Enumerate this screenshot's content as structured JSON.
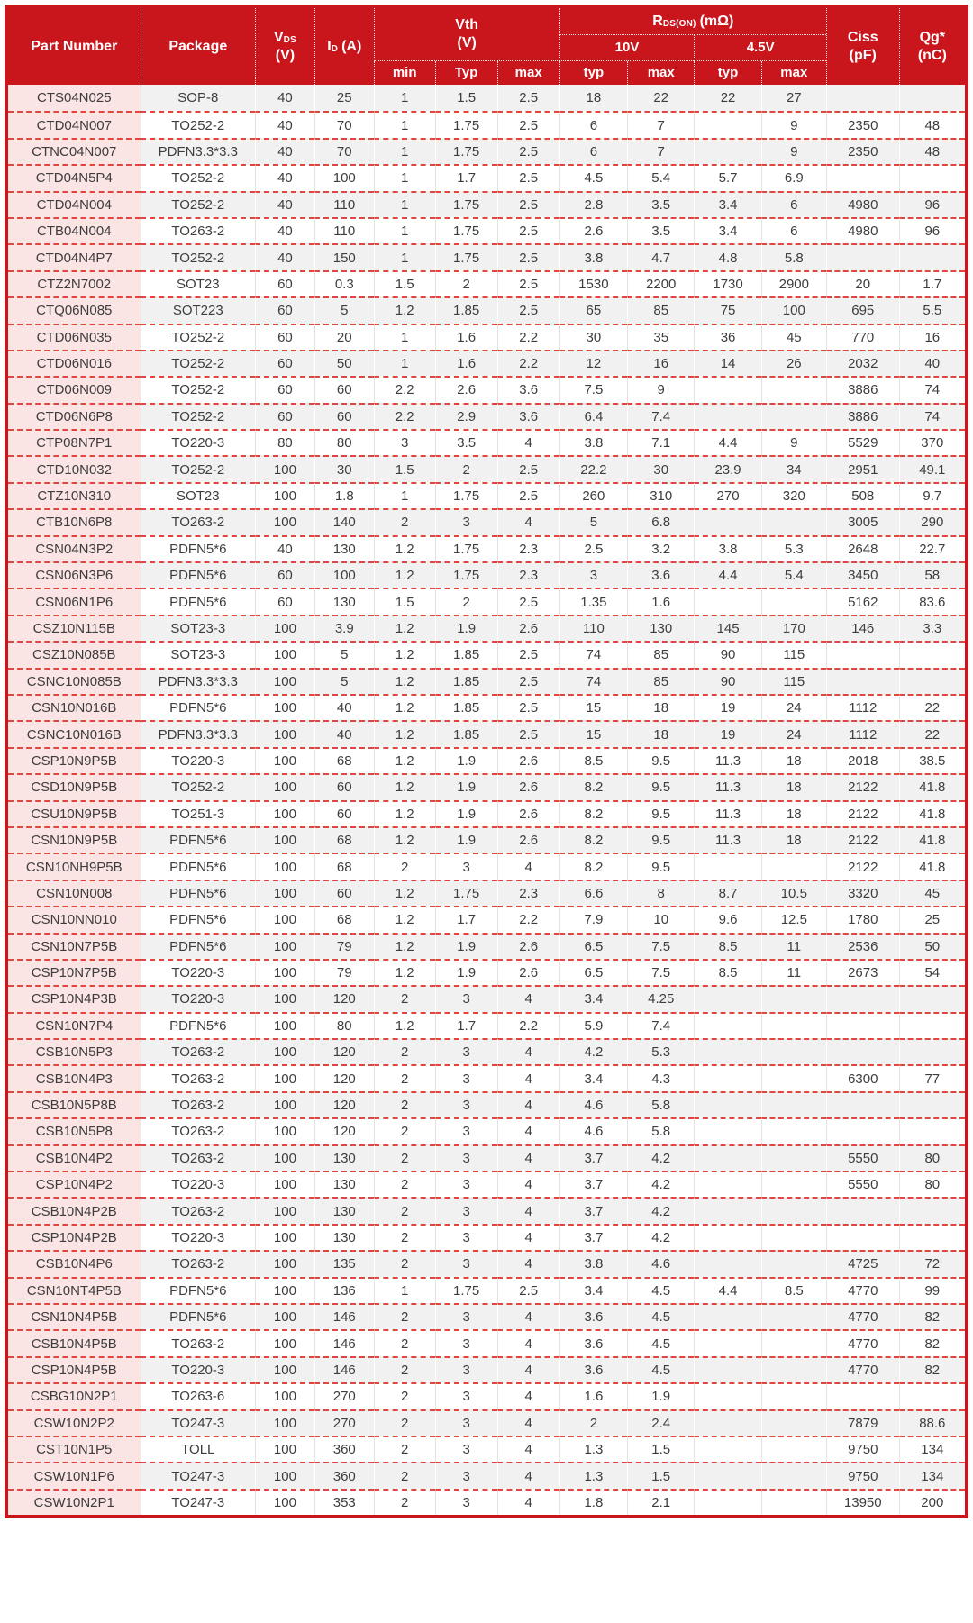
{
  "table": {
    "header": {
      "part_number": "Part Number",
      "package": "Package",
      "vds": {
        "symbol": "V",
        "sub": "DS",
        "unit": "(V)"
      },
      "id": {
        "symbol": "I",
        "sub": "D",
        "unit": "(A)"
      },
      "vth": {
        "line1": "Vth",
        "line2": "(V)"
      },
      "rdson": {
        "symbol": "R",
        "sub": "DS(ON)",
        "unit": "(mΩ)"
      },
      "gate_10v": "10V",
      "gate_45v": "4.5V",
      "sub_cols": [
        "min",
        "Typ",
        "max",
        "typ",
        "max",
        "typ",
        "max"
      ],
      "ciss": {
        "line1": "Ciss",
        "line2": "(pF)"
      },
      "qg": {
        "line1": "Qg*",
        "line2": "(nC)"
      }
    },
    "rows": [
      [
        "CTS04N025",
        "SOP-8",
        "40",
        "25",
        "1",
        "1.5",
        "2.5",
        "18",
        "22",
        "22",
        "27",
        "",
        ""
      ],
      [
        "CTD04N007",
        "TO252-2",
        "40",
        "70",
        "1",
        "1.75",
        "2.5",
        "6",
        "7",
        "",
        "9",
        "2350",
        "48"
      ],
      [
        "CTNC04N007",
        "PDFN3.3*3.3",
        "40",
        "70",
        "1",
        "1.75",
        "2.5",
        "6",
        "7",
        "",
        "9",
        "2350",
        "48"
      ],
      [
        "CTD04N5P4",
        "TO252-2",
        "40",
        "100",
        "1",
        "1.7",
        "2.5",
        "4.5",
        "5.4",
        "5.7",
        "6.9",
        "",
        ""
      ],
      [
        "CTD04N004",
        "TO252-2",
        "40",
        "110",
        "1",
        "1.75",
        "2.5",
        "2.8",
        "3.5",
        "3.4",
        "6",
        "4980",
        "96"
      ],
      [
        "CTB04N004",
        "TO263-2",
        "40",
        "110",
        "1",
        "1.75",
        "2.5",
        "2.6",
        "3.5",
        "3.4",
        "6",
        "4980",
        "96"
      ],
      [
        "CTD04N4P7",
        "TO252-2",
        "40",
        "150",
        "1",
        "1.75",
        "2.5",
        "3.8",
        "4.7",
        "4.8",
        "5.8",
        "",
        ""
      ],
      [
        "CTZ2N7002",
        "SOT23",
        "60",
        "0.3",
        "1.5",
        "2",
        "2.5",
        "1530",
        "2200",
        "1730",
        "2900",
        "20",
        "1.7"
      ],
      [
        "CTQ06N085",
        "SOT223",
        "60",
        "5",
        "1.2",
        "1.85",
        "2.5",
        "65",
        "85",
        "75",
        "100",
        "695",
        "5.5"
      ],
      [
        "CTD06N035",
        "TO252-2",
        "60",
        "20",
        "1",
        "1.6",
        "2.2",
        "30",
        "35",
        "36",
        "45",
        "770",
        "16"
      ],
      [
        "CTD06N016",
        "TO252-2",
        "60",
        "50",
        "1",
        "1.6",
        "2.2",
        "12",
        "16",
        "14",
        "26",
        "2032",
        "40"
      ],
      [
        "CTD06N009",
        "TO252-2",
        "60",
        "60",
        "2.2",
        "2.6",
        "3.6",
        "7.5",
        "9",
        "",
        "",
        "3886",
        "74"
      ],
      [
        "CTD06N6P8",
        "TO252-2",
        "60",
        "60",
        "2.2",
        "2.9",
        "3.6",
        "6.4",
        "7.4",
        "",
        "",
        "3886",
        "74"
      ],
      [
        "CTP08N7P1",
        "TO220-3",
        "80",
        "80",
        "3",
        "3.5",
        "4",
        "3.8",
        "7.1",
        "4.4",
        "9",
        "5529",
        "370"
      ],
      [
        "CTD10N032",
        "TO252-2",
        "100",
        "30",
        "1.5",
        "2",
        "2.5",
        "22.2",
        "30",
        "23.9",
        "34",
        "2951",
        "49.1"
      ],
      [
        "CTZ10N310",
        "SOT23",
        "100",
        "1.8",
        "1",
        "1.75",
        "2.5",
        "260",
        "310",
        "270",
        "320",
        "508",
        "9.7"
      ],
      [
        "CTB10N6P8",
        "TO263-2",
        "100",
        "140",
        "2",
        "3",
        "4",
        "5",
        "6.8",
        "",
        "",
        "3005",
        "290"
      ],
      [
        "CSN04N3P2",
        "PDFN5*6",
        "40",
        "130",
        "1.2",
        "1.75",
        "2.3",
        "2.5",
        "3.2",
        "3.8",
        "5.3",
        "2648",
        "22.7"
      ],
      [
        "CSN06N3P6",
        "PDFN5*6",
        "60",
        "100",
        "1.2",
        "1.75",
        "2.3",
        "3",
        "3.6",
        "4.4",
        "5.4",
        "3450",
        "58"
      ],
      [
        "CSN06N1P6",
        "PDFN5*6",
        "60",
        "130",
        "1.5",
        "2",
        "2.5",
        "1.35",
        "1.6",
        "",
        "",
        "5162",
        "83.6"
      ],
      [
        "CSZ10N115B",
        "SOT23-3",
        "100",
        "3.9",
        "1.2",
        "1.9",
        "2.6",
        "110",
        "130",
        "145",
        "170",
        "146",
        "3.3"
      ],
      [
        "CSZ10N085B",
        "SOT23-3",
        "100",
        "5",
        "1.2",
        "1.85",
        "2.5",
        "74",
        "85",
        "90",
        "115",
        "",
        ""
      ],
      [
        "CSNC10N085B",
        "PDFN3.3*3.3",
        "100",
        "5",
        "1.2",
        "1.85",
        "2.5",
        "74",
        "85",
        "90",
        "115",
        "",
        ""
      ],
      [
        "CSN10N016B",
        "PDFN5*6",
        "100",
        "40",
        "1.2",
        "1.85",
        "2.5",
        "15",
        "18",
        "19",
        "24",
        "1112",
        "22"
      ],
      [
        "CSNC10N016B",
        "PDFN3.3*3.3",
        "100",
        "40",
        "1.2",
        "1.85",
        "2.5",
        "15",
        "18",
        "19",
        "24",
        "1112",
        "22"
      ],
      [
        "CSP10N9P5B",
        "TO220-3",
        "100",
        "68",
        "1.2",
        "1.9",
        "2.6",
        "8.5",
        "9.5",
        "11.3",
        "18",
        "2018",
        "38.5"
      ],
      [
        "CSD10N9P5B",
        "TO252-2",
        "100",
        "60",
        "1.2",
        "1.9",
        "2.6",
        "8.2",
        "9.5",
        "11.3",
        "18",
        "2122",
        "41.8"
      ],
      [
        "CSU10N9P5B",
        "TO251-3",
        "100",
        "60",
        "1.2",
        "1.9",
        "2.6",
        "8.2",
        "9.5",
        "11.3",
        "18",
        "2122",
        "41.8"
      ],
      [
        "CSN10N9P5B",
        "PDFN5*6",
        "100",
        "68",
        "1.2",
        "1.9",
        "2.6",
        "8.2",
        "9.5",
        "11.3",
        "18",
        "2122",
        "41.8"
      ],
      [
        "CSN10NH9P5B",
        "PDFN5*6",
        "100",
        "68",
        "2",
        "3",
        "4",
        "8.2",
        "9.5",
        "",
        "",
        "2122",
        "41.8"
      ],
      [
        "CSN10N008",
        "PDFN5*6",
        "100",
        "60",
        "1.2",
        "1.75",
        "2.3",
        "6.6",
        "8",
        "8.7",
        "10.5",
        "3320",
        "45"
      ],
      [
        "CSN10NN010",
        "PDFN5*6",
        "100",
        "68",
        "1.2",
        "1.7",
        "2.2",
        "7.9",
        "10",
        "9.6",
        "12.5",
        "1780",
        "25"
      ],
      [
        "CSN10N7P5B",
        "PDFN5*6",
        "100",
        "79",
        "1.2",
        "1.9",
        "2.6",
        "6.5",
        "7.5",
        "8.5",
        "11",
        "2536",
        "50"
      ],
      [
        "CSP10N7P5B",
        "TO220-3",
        "100",
        "79",
        "1.2",
        "1.9",
        "2.6",
        "6.5",
        "7.5",
        "8.5",
        "11",
        "2673",
        "54"
      ],
      [
        "CSP10N4P3B",
        "TO220-3",
        "100",
        "120",
        "2",
        "3",
        "4",
        "3.4",
        "4.25",
        "",
        "",
        "",
        ""
      ],
      [
        "CSN10N7P4",
        "PDFN5*6",
        "100",
        "80",
        "1.2",
        "1.7",
        "2.2",
        "5.9",
        "7.4",
        "",
        "",
        "",
        ""
      ],
      [
        "CSB10N5P3",
        "TO263-2",
        "100",
        "120",
        "2",
        "3",
        "4",
        "4.2",
        "5.3",
        "",
        "",
        "",
        ""
      ],
      [
        "CSB10N4P3",
        "TO263-2",
        "100",
        "120",
        "2",
        "3",
        "4",
        "3.4",
        "4.3",
        "",
        "",
        "6300",
        "77"
      ],
      [
        "CSB10N5P8B",
        "TO263-2",
        "100",
        "120",
        "2",
        "3",
        "4",
        "4.6",
        "5.8",
        "",
        "",
        "",
        ""
      ],
      [
        "CSB10N5P8",
        "TO263-2",
        "100",
        "120",
        "2",
        "3",
        "4",
        "4.6",
        "5.8",
        "",
        "",
        "",
        ""
      ],
      [
        "CSB10N4P2",
        "TO263-2",
        "100",
        "130",
        "2",
        "3",
        "4",
        "3.7",
        "4.2",
        "",
        "",
        "5550",
        "80"
      ],
      [
        "CSP10N4P2",
        "TO220-3",
        "100",
        "130",
        "2",
        "3",
        "4",
        "3.7",
        "4.2",
        "",
        "",
        "5550",
        "80"
      ],
      [
        "CSB10N4P2B",
        "TO263-2",
        "100",
        "130",
        "2",
        "3",
        "4",
        "3.7",
        "4.2",
        "",
        "",
        "",
        ""
      ],
      [
        "CSP10N4P2B",
        "TO220-3",
        "100",
        "130",
        "2",
        "3",
        "4",
        "3.7",
        "4.2",
        "",
        "",
        "",
        ""
      ],
      [
        "CSB10N4P6",
        "TO263-2",
        "100",
        "135",
        "2",
        "3",
        "4",
        "3.8",
        "4.6",
        "",
        "",
        "4725",
        "72"
      ],
      [
        "CSN10NT4P5B",
        "PDFN5*6",
        "100",
        "136",
        "1",
        "1.75",
        "2.5",
        "3.4",
        "4.5",
        "4.4",
        "8.5",
        "4770",
        "99"
      ],
      [
        "CSN10N4P5B",
        "PDFN5*6",
        "100",
        "146",
        "2",
        "3",
        "4",
        "3.6",
        "4.5",
        "",
        "",
        "4770",
        "82"
      ],
      [
        "CSB10N4P5B",
        "TO263-2",
        "100",
        "146",
        "2",
        "3",
        "4",
        "3.6",
        "4.5",
        "",
        "",
        "4770",
        "82"
      ],
      [
        "CSP10N4P5B",
        "TO220-3",
        "100",
        "146",
        "2",
        "3",
        "4",
        "3.6",
        "4.5",
        "",
        "",
        "4770",
        "82"
      ],
      [
        "CSBG10N2P1",
        "TO263-6",
        "100",
        "270",
        "2",
        "3",
        "4",
        "1.6",
        "1.9",
        "",
        "",
        "",
        ""
      ],
      [
        "CSW10N2P2",
        "TO247-3",
        "100",
        "270",
        "2",
        "3",
        "4",
        "2",
        "2.4",
        "",
        "",
        "7879",
        "88.6"
      ],
      [
        "CST10N1P5",
        "TOLL",
        "100",
        "360",
        "2",
        "3",
        "4",
        "1.3",
        "1.5",
        "",
        "",
        "9750",
        "134"
      ],
      [
        "CSW10N1P6",
        "TO247-3",
        "100",
        "360",
        "2",
        "3",
        "4",
        "1.3",
        "1.5",
        "",
        "",
        "9750",
        "134"
      ],
      [
        "CSW10N2P1",
        "TO247-3",
        "100",
        "353",
        "2",
        "3",
        "4",
        "1.8",
        "2.1",
        "",
        "",
        "13950",
        "200"
      ]
    ]
  },
  "colors": {
    "header_red": "#c9161c",
    "row_separator_red": "#e0463f",
    "part_number_pink": "#fbe4e4",
    "alt_row_gray": "#f1f1f1",
    "body_text": "#3d3d3d"
  }
}
